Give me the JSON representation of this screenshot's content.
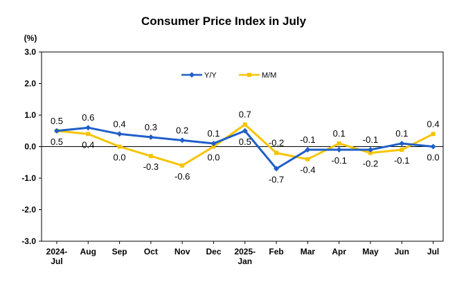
{
  "chart_data": {
    "type": "line",
    "title": "Consumer Price Index in July",
    "ylabel": "(%)",
    "xlabel": "",
    "ylim": [
      -3.0,
      3.0
    ],
    "yticks": [
      "3.0",
      "2.0",
      "1.0",
      "0.0",
      "-1.0",
      "-2.0",
      "-3.0"
    ],
    "ytick_values": [
      3,
      2,
      1,
      0,
      -1,
      -2,
      -3
    ],
    "categories": [
      [
        "2024-",
        "Jul"
      ],
      [
        "Aug"
      ],
      [
        "Sep"
      ],
      [
        "Oct"
      ],
      [
        "Nov"
      ],
      [
        "Dec"
      ],
      [
        "2025-",
        "Jan"
      ],
      [
        "Feb"
      ],
      [
        "Mar"
      ],
      [
        "Apr"
      ],
      [
        "May"
      ],
      [
        "Jun"
      ],
      [
        "Jul"
      ]
    ],
    "grid": false,
    "legend_position": "top-center",
    "series": [
      {
        "name": "Y/Y",
        "color": "#1F5FC8",
        "marker": "diamond",
        "values": [
          0.5,
          0.6,
          0.4,
          0.3,
          0.2,
          0.1,
          0.5,
          -0.7,
          -0.1,
          -0.1,
          -0.1,
          0.1,
          0.0
        ],
        "labels": [
          "0.5",
          "0.6",
          "0.4",
          "0.3",
          "0.2",
          "0.1",
          "0.5",
          "-0.7",
          "-0.1",
          "-0.1",
          "-0.1",
          "0.1",
          "0.0"
        ],
        "label_side": [
          "above",
          "above",
          "above",
          "above",
          "above",
          "above",
          "below",
          "below",
          "above",
          "below",
          "above",
          "above",
          "below"
        ]
      },
      {
        "name": "M/M",
        "color": "#F5C400",
        "marker": "square",
        "values": [
          0.5,
          0.4,
          0.0,
          -0.3,
          -0.6,
          0.0,
          0.7,
          -0.2,
          -0.4,
          0.1,
          -0.2,
          -0.1,
          0.4
        ],
        "labels": [
          "0.5",
          "0.4",
          "0.0",
          "-0.3",
          "-0.6",
          "0.0",
          "0.7",
          "-0.2",
          "-0.4",
          "0.1",
          "-0.2",
          "-0.1",
          "0.4"
        ],
        "label_side": [
          "below",
          "below",
          "below",
          "below",
          "below",
          "below",
          "above",
          "above",
          "below",
          "above",
          "below",
          "below",
          "above"
        ]
      }
    ]
  }
}
